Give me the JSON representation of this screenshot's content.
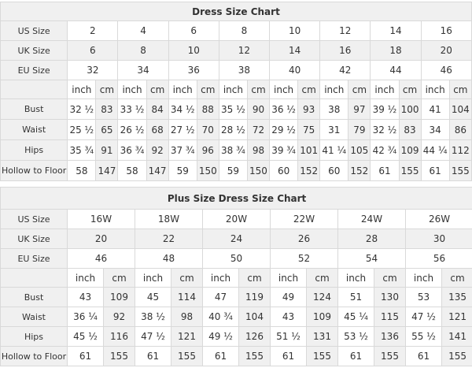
{
  "colors": {
    "stripe": "#f0f0f0",
    "border": "#d9d9d9",
    "text": "#333333",
    "title_text": "#000000",
    "background": "#ffffff"
  },
  "chart_data": [
    {
      "type": "table",
      "title": "Dress Size Chart",
      "num_groups": 8,
      "units": [
        "inch",
        "cm"
      ],
      "size_rows": [
        {
          "label": "US Size",
          "striped": false,
          "values": [
            "2",
            "4",
            "6",
            "8",
            "10",
            "12",
            "14",
            "16"
          ]
        },
        {
          "label": "UK Size",
          "striped": true,
          "values": [
            "6",
            "8",
            "10",
            "12",
            "14",
            "16",
            "18",
            "20"
          ]
        },
        {
          "label": "EU Size",
          "striped": false,
          "values": [
            "32",
            "34",
            "36",
            "38",
            "40",
            "42",
            "44",
            "46"
          ]
        }
      ],
      "measure_rows": [
        {
          "label": "Bust",
          "values": [
            "32 ½",
            "83",
            "33 ½",
            "84",
            "34 ½",
            "88",
            "35 ½",
            "90",
            "36 ½",
            "93",
            "38",
            "97",
            "39 ½",
            "100",
            "41",
            "104"
          ]
        },
        {
          "label": "Waist",
          "values": [
            "25 ½",
            "65",
            "26 ½",
            "68",
            "27 ½",
            "70",
            "28 ½",
            "72",
            "29 ½",
            "75",
            "31",
            "79",
            "32 ½",
            "83",
            "34",
            "86"
          ]
        },
        {
          "label": "Hips",
          "values": [
            "35 ¾",
            "91",
            "36 ¾",
            "92",
            "37 ¾",
            "96",
            "38 ¾",
            "98",
            "39 ¾",
            "101",
            "41 ¼",
            "105",
            "42 ¾",
            "109",
            "44 ¼",
            "112"
          ]
        },
        {
          "label": "Hollow to Floor",
          "values": [
            "58",
            "147",
            "58",
            "147",
            "59",
            "150",
            "59",
            "150",
            "60",
            "152",
            "60",
            "152",
            "61",
            "155",
            "61",
            "155"
          ]
        }
      ]
    },
    {
      "type": "table",
      "title": "Plus Size Dress Size Chart",
      "num_groups": 6,
      "units": [
        "inch",
        "cm"
      ],
      "size_rows": [
        {
          "label": "US Size",
          "striped": false,
          "values": [
            "16W",
            "18W",
            "20W",
            "22W",
            "24W",
            "26W"
          ]
        },
        {
          "label": "UK Size",
          "striped": true,
          "values": [
            "20",
            "22",
            "24",
            "26",
            "28",
            "30"
          ]
        },
        {
          "label": "EU Size",
          "striped": false,
          "values": [
            "46",
            "48",
            "50",
            "52",
            "54",
            "56"
          ]
        }
      ],
      "measure_rows": [
        {
          "label": "Bust",
          "values": [
            "43",
            "109",
            "45",
            "114",
            "47",
            "119",
            "49",
            "124",
            "51",
            "130",
            "53",
            "135"
          ]
        },
        {
          "label": "Waist",
          "values": [
            "36 ¼",
            "92",
            "38 ½",
            "98",
            "40 ¾",
            "104",
            "43",
            "109",
            "45 ¼",
            "115",
            "47 ½",
            "121"
          ]
        },
        {
          "label": "Hips",
          "values": [
            "45 ½",
            "116",
            "47 ½",
            "121",
            "49 ½",
            "126",
            "51 ½",
            "131",
            "53 ½",
            "136",
            "55 ½",
            "141"
          ]
        },
        {
          "label": "Hollow to Floor",
          "values": [
            "61",
            "155",
            "61",
            "155",
            "61",
            "155",
            "61",
            "155",
            "61",
            "155",
            "61",
            "155"
          ]
        }
      ]
    }
  ]
}
